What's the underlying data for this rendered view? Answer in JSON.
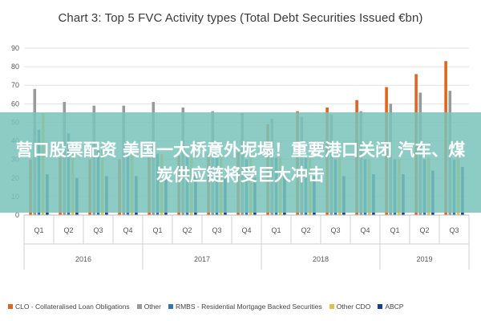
{
  "chart_data": {
    "type": "bar",
    "title": "Chart 3: Top 5 FVC Activity types (Total Debt Securities Issued €bn)",
    "categories": [
      "Q1",
      "Q2",
      "Q3",
      "Q4",
      "Q1",
      "Q2",
      "Q3",
      "Q4",
      "Q1",
      "Q2",
      "Q3",
      "Q4",
      "Q1",
      "Q2",
      "Q3"
    ],
    "year_groups": [
      {
        "label": "2016",
        "span": 4
      },
      {
        "label": "2017",
        "span": 4
      },
      {
        "label": "2018",
        "span": 4
      },
      {
        "label": "2019",
        "span": 3
      }
    ],
    "ylim": [
      0,
      90
    ],
    "yticks": [
      0,
      10,
      20,
      30,
      40,
      50,
      60,
      70,
      80,
      90
    ],
    "grid": true,
    "legend_position": "bottom",
    "series": [
      {
        "name": "CLO - Collateralised Loan Obligations",
        "color": "#e0651f",
        "values": [
          30,
          31,
          30,
          30,
          31,
          32,
          33,
          34,
          49,
          56,
          58,
          62,
          69,
          76,
          83
        ]
      },
      {
        "name": "Other",
        "color": "#9a9a9a",
        "values": [
          68,
          61,
          59,
          59,
          61,
          58,
          56,
          55,
          52,
          53,
          54,
          56,
          60,
          66,
          67
        ]
      },
      {
        "name": "RMBS - Residential Mortgage Backed Securities",
        "color": "#2e78ad",
        "values": [
          46,
          44,
          35,
          34,
          33,
          32,
          31,
          30,
          31,
          31,
          30,
          30,
          30,
          30,
          30
        ]
      },
      {
        "name": "Other CDO",
        "color": "#e6c13c",
        "values": [
          55,
          40,
          35,
          34,
          33,
          32,
          32,
          32,
          31,
          31,
          31,
          30,
          30,
          31,
          32
        ]
      },
      {
        "name": "ABCP",
        "color": "#1b3f8f",
        "values": [
          22,
          20,
          21,
          21,
          20,
          21,
          20,
          20,
          21,
          21,
          21,
          22,
          22,
          24,
          26
        ]
      }
    ]
  },
  "overlay": {
    "text": "营口股票配资 美国一大桥意外坭塌！重要港口关闭 汽车、煤炭供应链将受巨大冲击"
  }
}
